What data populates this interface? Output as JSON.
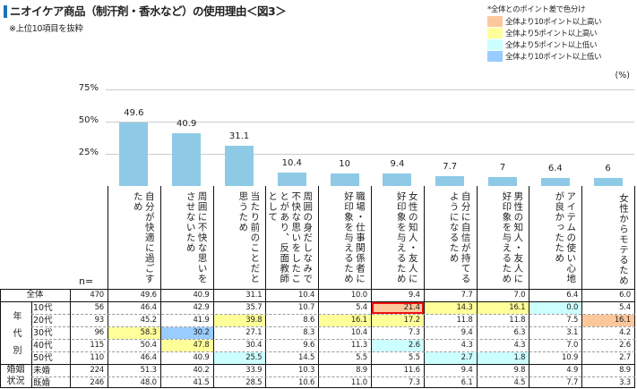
{
  "title": "ニオイケア商品（制汗剤・香水など）の使用理由＜図3＞",
  "subtitle": "※上位10項目を抜粋",
  "legend": {
    "note": "*全体とのポイント差で色分け",
    "items": [
      {
        "label": "全体より10ポイント以上高い",
        "color": "#fcc89b",
        "key": "o"
      },
      {
        "label": "全体より5ポイント以上高い",
        "color": "#ffff99",
        "key": "y"
      },
      {
        "label": "全体より5ポイント以上低い",
        "color": "#ccffff",
        "key": "c"
      },
      {
        "label": "全体より10ポイント以上低い",
        "color": "#99ccff",
        "key": "b"
      }
    ]
  },
  "unit": "(%)",
  "n_label": "n=",
  "chart_data": {
    "type": "bar",
    "ylim": [
      0,
      75
    ],
    "yticks": [
      "75%",
      "50%",
      "25%"
    ],
    "ytick_values": [
      75,
      50,
      25
    ],
    "grid": true,
    "bar_color": "#8ecae6",
    "categories": [
      "自分が快適に過ごすため",
      "周囲に不快な思いをさせないため",
      "当たり前のことだと思うため",
      "周囲の身だしなみで不快な思いをしたことがあり、反面教師として",
      "職場・仕事関係者に好印象を与えるため",
      "女性の知人・友人に好印象を与えるため",
      "自分に自信が持てるようになるため",
      "男性の知人・友人に好印象を与えるため",
      "アイテムの使い心地が良かったため",
      "女性からモテるため"
    ],
    "values": [
      49.6,
      40.9,
      31.1,
      10.4,
      10.0,
      9.4,
      7.7,
      7.0,
      6.4,
      6.0
    ]
  },
  "table": {
    "groups": [
      {
        "label": "",
        "rows": 1
      },
      {
        "label": "年代別",
        "rows": 5
      },
      {
        "label": "婚姻状況",
        "rows": 2
      }
    ],
    "rows": [
      {
        "label": "全体",
        "n": "470",
        "values": [
          "49.6",
          "40.9",
          "31.1",
          "10.4",
          "10.0",
          "9.4",
          "7.7",
          "7.0",
          "6.4",
          "6.0"
        ],
        "colors": [
          "",
          "",
          "",
          "",
          "",
          "",
          "",
          "",
          "",
          ""
        ]
      },
      {
        "label": "10代",
        "n": "56",
        "values": [
          "46.4",
          "42.9",
          "35.7",
          "10.7",
          "5.4",
          "21.4",
          "14.3",
          "16.1",
          "0.0",
          "5.4"
        ],
        "colors": [
          "",
          "",
          "",
          "",
          "",
          "o",
          "y",
          "y",
          "c",
          ""
        ],
        "marked": [
          5
        ]
      },
      {
        "label": "20代",
        "n": "93",
        "values": [
          "45.2",
          "41.9",
          "39.8",
          "8.6",
          "16.1",
          "17.2",
          "11.8",
          "11.8",
          "7.5",
          "16.1"
        ],
        "colors": [
          "",
          "",
          "y",
          "",
          "y",
          "y",
          "",
          "",
          "",
          "o"
        ]
      },
      {
        "label": "30代",
        "n": "96",
        "values": [
          "58.3",
          "30.2",
          "27.1",
          "8.3",
          "10.4",
          "7.3",
          "9.4",
          "6.3",
          "3.1",
          "4.2"
        ],
        "colors": [
          "y",
          "b",
          "",
          "",
          "",
          "",
          "",
          "",
          "",
          ""
        ]
      },
      {
        "label": "40代",
        "n": "115",
        "values": [
          "50.4",
          "47.8",
          "30.4",
          "9.6",
          "11.3",
          "2.6",
          "4.3",
          "4.3",
          "7.0",
          "2.6"
        ],
        "colors": [
          "",
          "y",
          "",
          "",
          "",
          "c",
          "",
          "",
          "",
          ""
        ]
      },
      {
        "label": "50代",
        "n": "110",
        "values": [
          "46.4",
          "40.9",
          "25.5",
          "14.5",
          "5.5",
          "5.5",
          "2.7",
          "1.8",
          "10.9",
          "2.7"
        ],
        "colors": [
          "",
          "",
          "c",
          "",
          "",
          "",
          "c",
          "c",
          "",
          ""
        ]
      },
      {
        "label": "未婚",
        "n": "224",
        "values": [
          "51.3",
          "40.2",
          "33.9",
          "10.3",
          "8.9",
          "11.6",
          "9.4",
          "9.8",
          "4.9",
          "8.9"
        ],
        "colors": [
          "",
          "",
          "",
          "",
          "",
          "",
          "",
          "",
          "",
          ""
        ]
      },
      {
        "label": "既婚",
        "n": "246",
        "values": [
          "48.0",
          "41.5",
          "28.5",
          "10.6",
          "11.0",
          "7.3",
          "6.1",
          "4.5",
          "7.7",
          "3.3"
        ],
        "colors": [
          "",
          "",
          "",
          "",
          "",
          "",
          "",
          "",
          "",
          ""
        ]
      }
    ]
  }
}
